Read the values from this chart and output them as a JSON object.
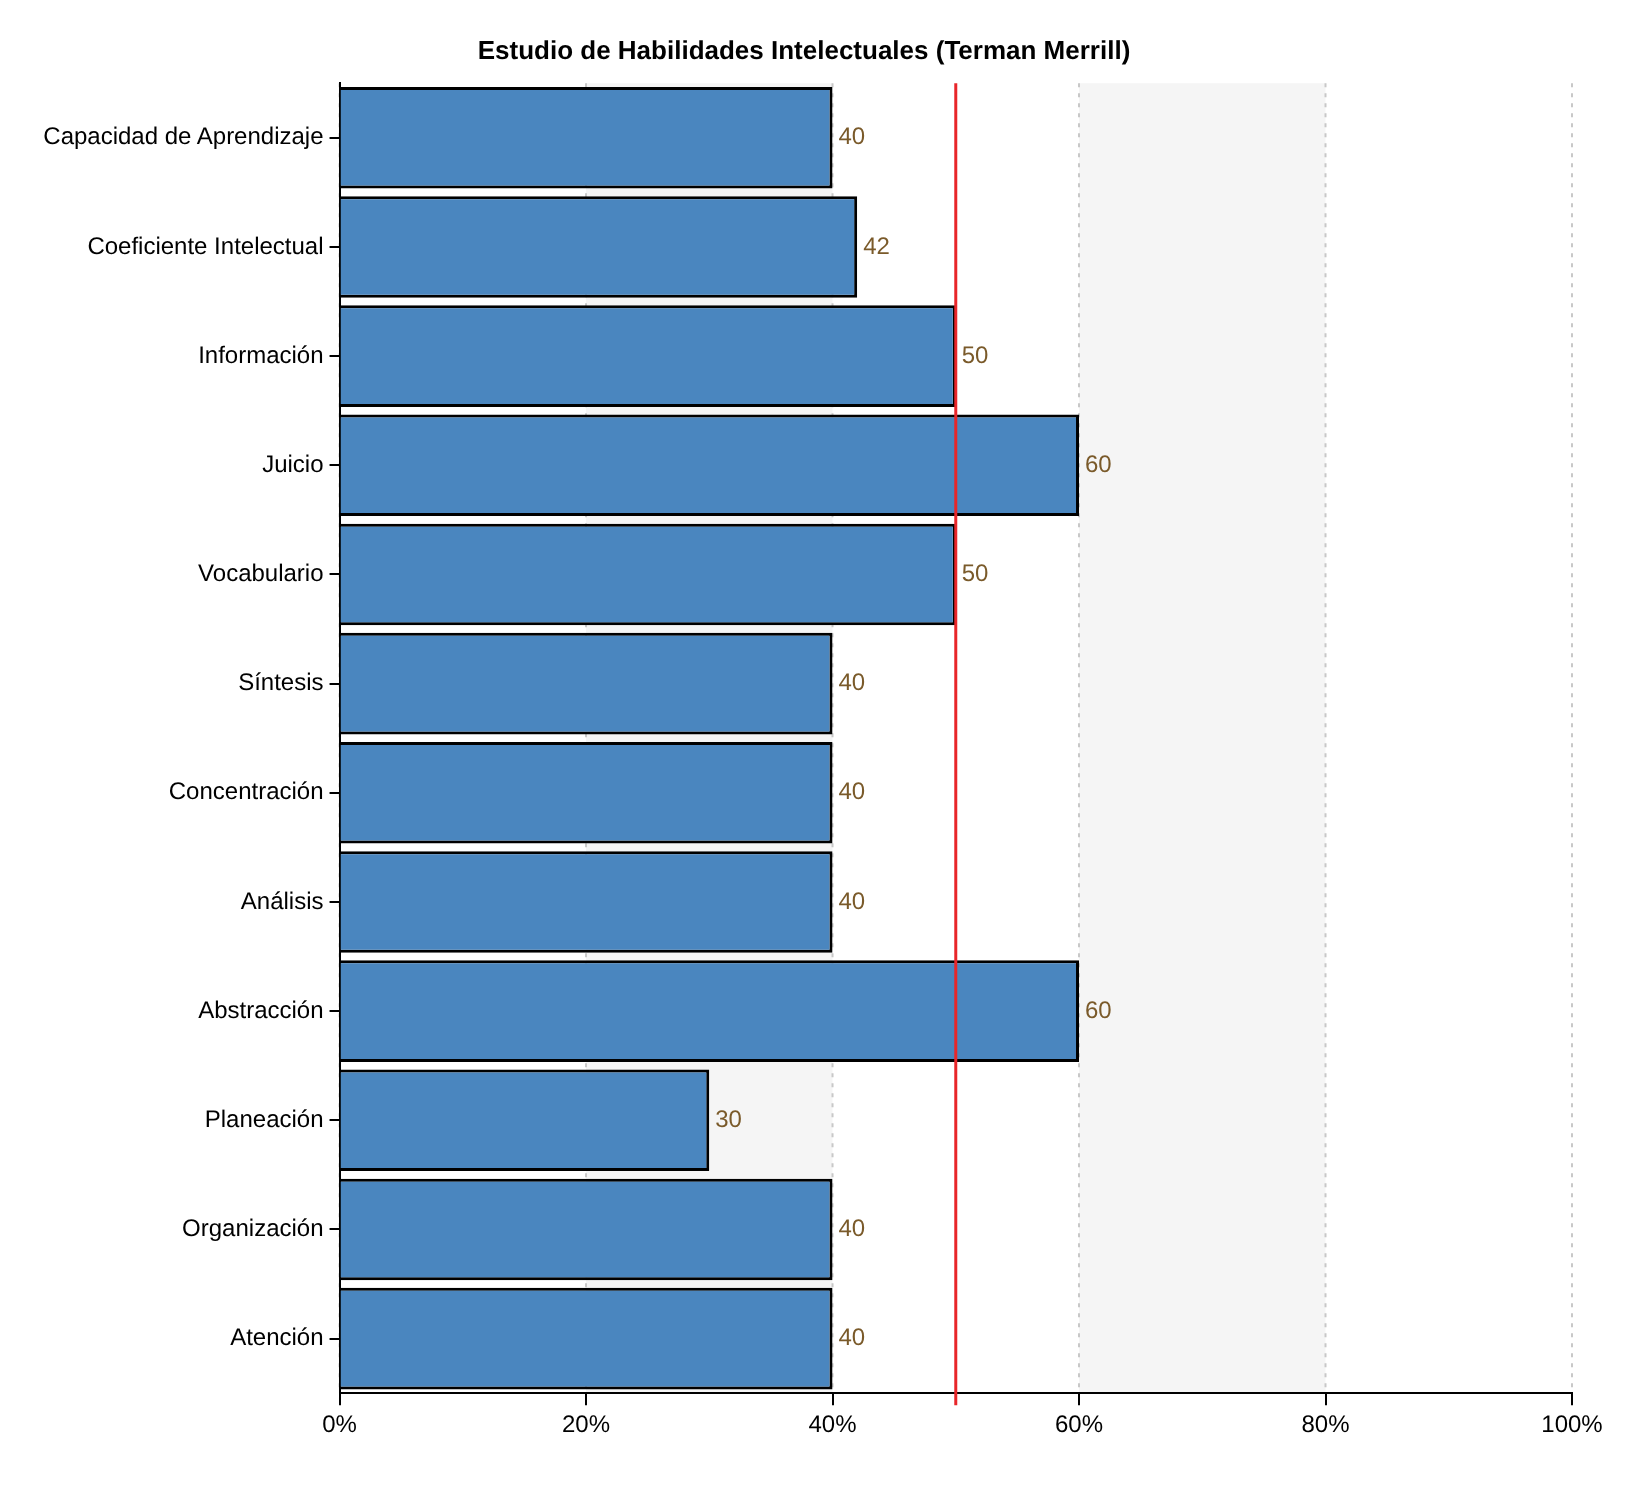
{
  "chart_data": {
    "type": "bar",
    "orientation": "horizontal",
    "title": "Estudio de Habilidades Intelectuales (Terman Merrill)",
    "categories": [
      "Capacidad de Aprendizaje",
      "Coeficiente Intelectual",
      "Información",
      "Juicio",
      "Vocabulario",
      "Síntesis",
      "Concentración",
      "Análisis",
      "Abstracción",
      "Planeación",
      "Organización",
      "Atención"
    ],
    "values": [
      40,
      42,
      50,
      60,
      50,
      40,
      40,
      40,
      60,
      30,
      40,
      40
    ],
    "color": "#4a86bf",
    "xlim": [
      0,
      100
    ],
    "xticks": [
      {
        "value": 0,
        "label": "0%"
      },
      {
        "value": 20,
        "label": "20%"
      },
      {
        "value": 40,
        "label": "40%"
      },
      {
        "value": 60,
        "label": "60%"
      },
      {
        "value": 80,
        "label": "80%"
      },
      {
        "value": 100,
        "label": "100%"
      }
    ],
    "grid": "x",
    "line_style": "dotted",
    "data_labels": true,
    "legend": false,
    "ref_lines": [
      {
        "axis": "x",
        "value": 50,
        "color": "#e8262a"
      }
    ],
    "bands": [
      {
        "axis": "x",
        "from": 20,
        "to": 40,
        "color": "#f5f5f5"
      },
      {
        "axis": "x",
        "from": 60,
        "to": 80,
        "color": "#f5f5f5"
      }
    ]
  }
}
